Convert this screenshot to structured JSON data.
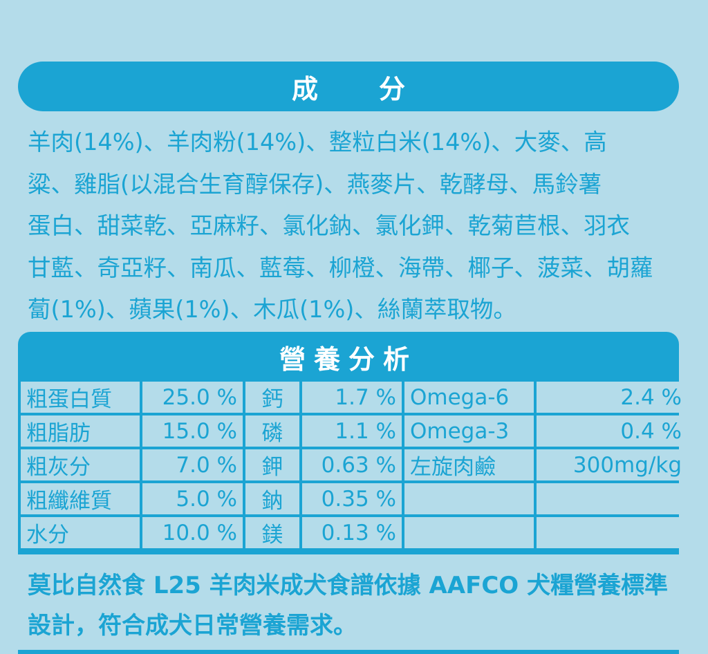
{
  "ingredients": {
    "title": "成分",
    "text": "羊肉(14%)、羊肉粉(14%)、整粒白米(14%)、大麥、高\n粱、雞脂(以混合生育醇保存)、燕麥片、乾酵母、馬鈴薯\n蛋白、甜菜乾、亞麻籽、氯化鈉、氯化鉀、乾菊苣根、羽衣\n甘藍、奇亞籽、南瓜、藍莓、柳橙、海帶、椰子、菠菜、胡蘿\n蔔(1%)、蘋果(1%)、木瓜(1%)、絲蘭萃取物。"
  },
  "analysis": {
    "title": "營養分析",
    "rows": [
      {
        "label": "粗蛋白質",
        "value": "25.0 %",
        "mineral": "鈣",
        "mineral_value": "1.7 %",
        "extra_label": "Omega-6",
        "extra_value": "2.4 %"
      },
      {
        "label": "粗脂肪",
        "value": "15.0 %",
        "mineral": "磷",
        "mineral_value": "1.1 %",
        "extra_label": "Omega-3",
        "extra_value": "0.4 %"
      },
      {
        "label": "粗灰分",
        "value": "7.0 %",
        "mineral": "鉀",
        "mineral_value": "0.63 %",
        "extra_label": "左旋肉鹼",
        "extra_value": "300mg/kg"
      },
      {
        "label": "粗纖維質",
        "value": "5.0 %",
        "mineral": "鈉",
        "mineral_value": "0.35 %",
        "extra_label": "",
        "extra_value": ""
      },
      {
        "label": "水分",
        "value": "10.0 %",
        "mineral": "鎂",
        "mineral_value": "0.13 %",
        "extra_label": "",
        "extra_value": ""
      }
    ]
  },
  "footer": {
    "note": "莫比自然食 L25 羊肉米成犬食譜依據 AAFCO 犬糧營養標準設計，符合成犬日常營養需求。"
  },
  "colors": {
    "background": "#b4dcea",
    "accent": "#1ba4d3",
    "banner_text": "#ffffff"
  }
}
